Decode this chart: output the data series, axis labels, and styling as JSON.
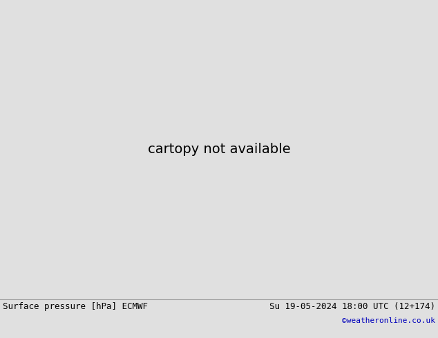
{
  "title_left": "Surface pressure [hPa] ECMWF",
  "title_right": "Su 19-05-2024 18:00 UTC (12+174)",
  "credit": "©weatheronline.co.uk",
  "ocean_color": "#d8dde0",
  "land_color": "#b8dba0",
  "gray_land_color": "#b8b8b8",
  "background_color": "#d8dde0",
  "footer_bg": "#e0e0e0",
  "figsize": [
    6.34,
    4.9
  ],
  "dpi": 100,
  "text_color_black": "#000000",
  "text_color_blue": "#0000bb",
  "text_color_red": "#cc0000",
  "footer_text_color": "#000000",
  "credit_color": "#0000bb",
  "font_size_footer": 9,
  "font_size_credit": 8,
  "font_size_labels": 7,
  "extent": [
    -100,
    -20,
    -60,
    20
  ]
}
